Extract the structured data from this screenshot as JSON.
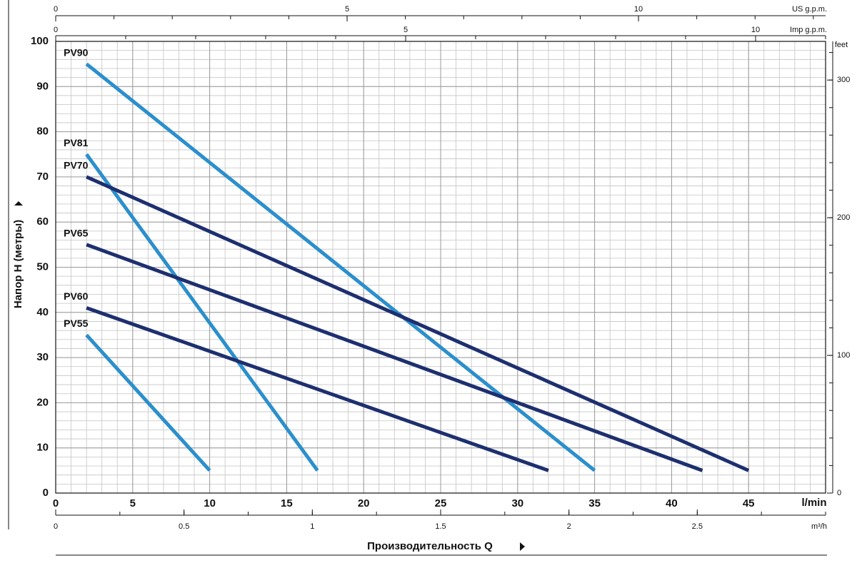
{
  "chart_data": {
    "type": "line",
    "x_label": "l/min",
    "y_label": "Напор H (метры)",
    "x_title": "Производительность Q",
    "xlim": [
      0,
      50
    ],
    "ylim": [
      0,
      100
    ],
    "xticks": [
      0,
      5,
      10,
      15,
      20,
      25,
      30,
      35,
      40,
      45
    ],
    "yticks": [
      0,
      10,
      20,
      30,
      40,
      50,
      60,
      70,
      80,
      90,
      100
    ],
    "grid": true,
    "grid_minor_x": 1,
    "grid_minor_y": 2,
    "series": [
      {
        "name": "PV90",
        "color": "#2b8fcc",
        "x": [
          2,
          35
        ],
        "values": [
          95,
          5
        ]
      },
      {
        "name": "PV81",
        "color": "#2b8fcc",
        "x": [
          2,
          17
        ],
        "values": [
          75,
          5
        ]
      },
      {
        "name": "PV70",
        "color": "#1d2f6f",
        "x": [
          2,
          45
        ],
        "values": [
          70,
          5
        ]
      },
      {
        "name": "PV65",
        "color": "#1d2f6f",
        "x": [
          2,
          42
        ],
        "values": [
          55,
          5
        ]
      },
      {
        "name": "PV60",
        "color": "#1d2f6f",
        "x": [
          2,
          32
        ],
        "values": [
          41,
          5
        ]
      },
      {
        "name": "PV55",
        "color": "#2b8fcc",
        "x": [
          2,
          10
        ],
        "values": [
          35,
          5
        ]
      }
    ],
    "secondary_axes": [
      {
        "label": "US g.p.m.",
        "side": "top",
        "lim": [
          0,
          13.21
        ],
        "ticks": [
          0,
          5,
          10
        ],
        "minor_step": 1
      },
      {
        "label": "Imp g.p.m.",
        "side": "top",
        "lim": [
          0,
          11
        ],
        "ticks": [
          0,
          5,
          10
        ],
        "minor_step": 1
      },
      {
        "label": "m³/h",
        "side": "bottom",
        "lim": [
          0,
          3
        ],
        "ticks": [
          0,
          0.5,
          1,
          1.5,
          2,
          2.5
        ],
        "minor_step": 0.25
      },
      {
        "label": "feet",
        "side": "right",
        "lim": [
          0,
          328.08
        ],
        "ticks": [
          0,
          100,
          200,
          300
        ],
        "minor_step": 20
      }
    ]
  }
}
